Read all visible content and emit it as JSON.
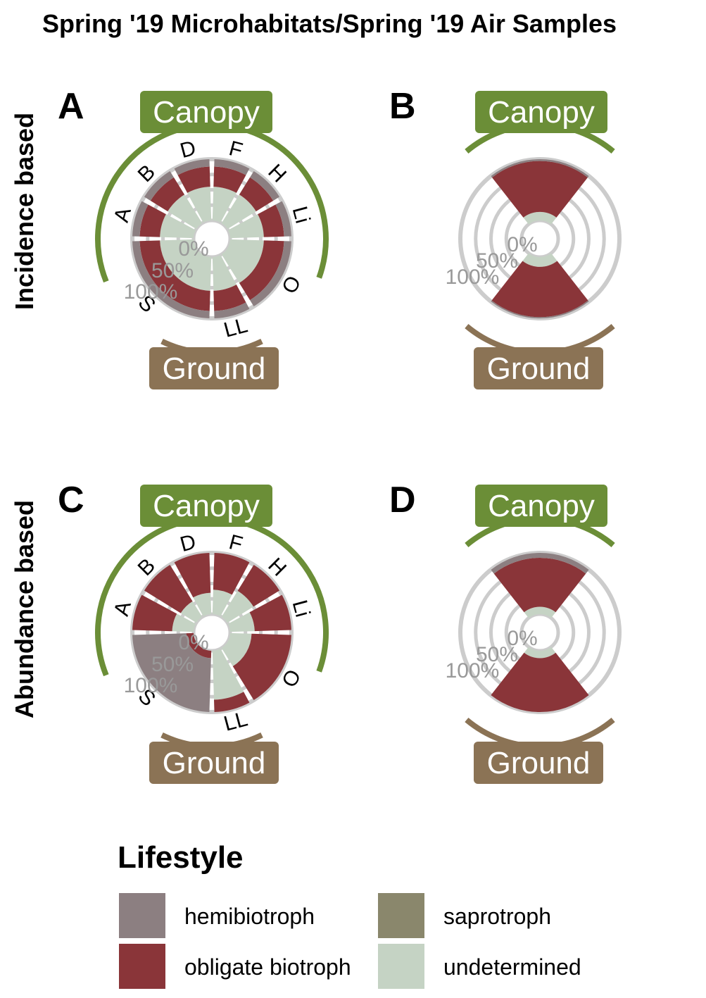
{
  "title": "Spring '19 Microhabitats/Spring '19 Air Samples",
  "row_labels": [
    "Incidence based",
    "Abundance based"
  ],
  "strip_labels": {
    "top": "Canopy",
    "bottom": "Ground"
  },
  "ring_labels": [
    "0%",
    "50%",
    "100%"
  ],
  "colors": {
    "hemibiotroph": "#8c7f81",
    "obligate biotroph": "#8a3539",
    "saprotroph": "#8a876c",
    "undetermined": "#c5d3c4",
    "canopy": "#6b8e37",
    "ground": "#8b7355",
    "grid": "#cccccc"
  },
  "chart_data": [
    {
      "panel": "A",
      "type": "bar",
      "coord": "polar",
      "basis": "Incidence based",
      "categories": [
        "A",
        "B",
        "D",
        "F",
        "H",
        "Li",
        "O",
        "LL",
        "S"
      ],
      "series": [
        {
          "name": "undetermined",
          "values": [
            0.55,
            0.55,
            0.55,
            0.55,
            0.55,
            0.55,
            0.55,
            0.55,
            0.55
          ]
        },
        {
          "name": "obligate biotroph",
          "values": [
            0.33,
            0.33,
            0.33,
            0.33,
            0.33,
            0.33,
            0.33,
            0.33,
            0.33
          ]
        },
        {
          "name": "hemibiotroph",
          "values": [
            0.12,
            0.12,
            0.12,
            0.12,
            0.12,
            0.12,
            0.12,
            0.12,
            0.12
          ]
        }
      ]
    },
    {
      "panel": "B",
      "type": "bar",
      "coord": "polar",
      "basis": "Incidence based",
      "categories": [
        "Canopy",
        "Ground"
      ],
      "series": [
        {
          "name": "undetermined",
          "values": [
            0.14,
            0.16
          ]
        },
        {
          "name": "obligate biotroph",
          "values": [
            0.83,
            0.82
          ]
        },
        {
          "name": "hemibiotroph",
          "values": [
            0.03,
            0.02
          ]
        }
      ]
    },
    {
      "panel": "C",
      "type": "bar",
      "coord": "polar",
      "basis": "Abundance based",
      "categories": [
        "A",
        "B",
        "D",
        "F",
        "H",
        "Li",
        "O",
        "LL",
        "S"
      ],
      "series": [
        {
          "name": "undetermined",
          "values": [
            0.35,
            0.3,
            0.35,
            0.4,
            0.5,
            0.4,
            0.35,
            0.8,
            0.0
          ]
        },
        {
          "name": "obligate biotroph",
          "values": [
            0.65,
            0.7,
            0.65,
            0.6,
            0.5,
            0.6,
            0.65,
            0.2,
            0.12
          ]
        },
        {
          "name": "hemibiotroph",
          "values": [
            0.0,
            0.0,
            0.0,
            0.0,
            0.0,
            0.0,
            0.0,
            0.0,
            0.88
          ]
        }
      ]
    },
    {
      "panel": "D",
      "type": "bar",
      "coord": "polar",
      "basis": "Abundance based",
      "categories": [
        "Canopy",
        "Ground"
      ],
      "series": [
        {
          "name": "undetermined",
          "values": [
            0.12,
            0.12
          ]
        },
        {
          "name": "obligate biotroph",
          "values": [
            0.8,
            0.88
          ]
        },
        {
          "name": "hemibiotroph",
          "values": [
            0.08,
            0.0
          ]
        }
      ]
    }
  ],
  "legend": {
    "title": "Lifestyle",
    "items": [
      {
        "label": "hemibiotroph",
        "color": "#8c7f81"
      },
      {
        "label": "saprotroph",
        "color": "#8a876c"
      },
      {
        "label": "obligate biotroph",
        "color": "#8a3539"
      },
      {
        "label": "undetermined",
        "color": "#c5d3c4"
      }
    ]
  }
}
